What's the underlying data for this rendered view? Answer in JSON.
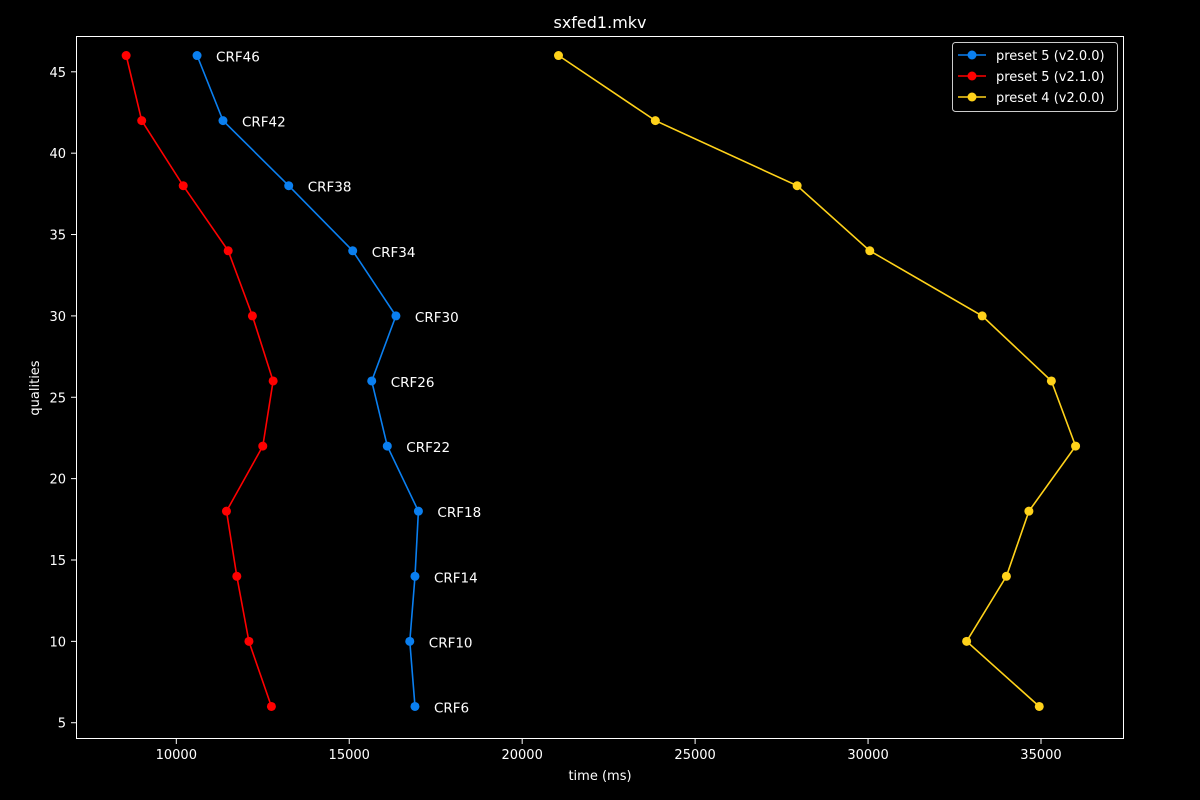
{
  "chart_data": {
    "type": "line",
    "title": "sxfed1.mkv",
    "xlabel": "time (ms)",
    "ylabel": "qualities",
    "xlim": [
      7100,
      37400
    ],
    "ylim": [
      4,
      47.2
    ],
    "xticks": [
      10000,
      15000,
      20000,
      25000,
      30000,
      35000
    ],
    "yticks": [
      5,
      10,
      15,
      20,
      25,
      30,
      35,
      40,
      45
    ],
    "grid": false,
    "legend_position": "top-right",
    "background": "#000000",
    "foreground": "#ffffff",
    "point_labels": [
      "CRF46",
      "CRF42",
      "CRF38",
      "CRF34",
      "CRF30",
      "CRF26",
      "CRF22",
      "CRF18",
      "CRF14",
      "CRF10",
      "CRF6"
    ],
    "series": [
      {
        "name": "preset 5 (v2.0.0)",
        "color": "#0a7ff0",
        "x": [
          10600,
          11350,
          13250,
          15100,
          16350,
          15650,
          16100,
          17000,
          16900,
          16750,
          16900
        ],
        "y": [
          46,
          42,
          38,
          34,
          30,
          26,
          22,
          18,
          14,
          10,
          6
        ],
        "labeled": true
      },
      {
        "name": "preset 5 (v2.1.0)",
        "color": "#ff0000",
        "x": [
          8550,
          9000,
          10200,
          11500,
          12200,
          12800,
          12500,
          11450,
          11750,
          12100,
          12750
        ],
        "y": [
          46,
          42,
          38,
          34,
          30,
          26,
          22,
          18,
          14,
          10,
          6
        ],
        "labeled": false
      },
      {
        "name": "preset 4 (v2.0.0)",
        "color": "#ffd21a",
        "x": [
          21050,
          23850,
          27950,
          30050,
          33300,
          35300,
          36000,
          34650,
          34000,
          32850,
          34950
        ],
        "y": [
          46,
          42,
          38,
          34,
          30,
          26,
          22,
          18,
          14,
          10,
          6
        ],
        "labeled": false
      }
    ]
  }
}
